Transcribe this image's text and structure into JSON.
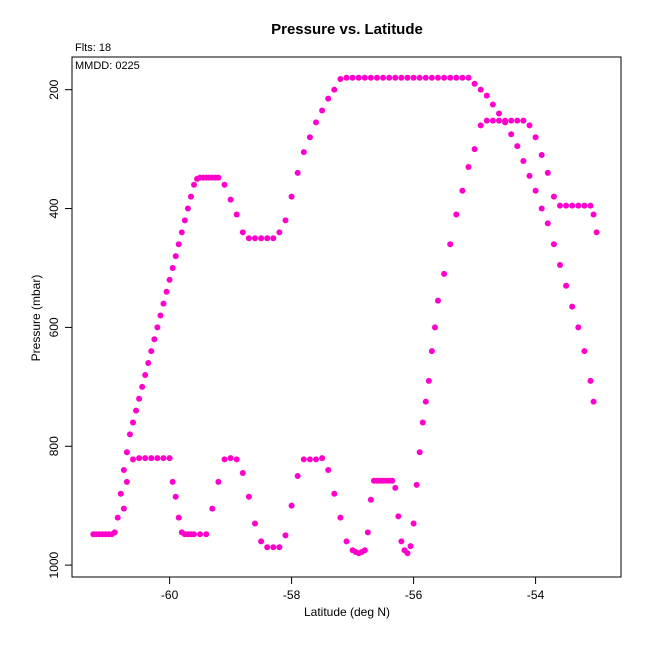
{
  "chart_data": {
    "type": "scatter",
    "title": "Pressure vs. Latitude",
    "xlabel": "Latitude (deg N)",
    "ylabel": "Pressure (mbar)",
    "annotations": [
      "Flts: 18",
      "MMDD: 0225"
    ],
    "xlim": [
      -61.6,
      -52.6
    ],
    "ylim": [
      1020,
      145
    ],
    "y_reversed": true,
    "x_ticks": [
      -60,
      -58,
      -56,
      -54
    ],
    "y_ticks": [
      200,
      400,
      600,
      800,
      1000
    ],
    "grid": false,
    "point_color": "#ff00cc",
    "series": [
      {
        "x": [
          -61.25,
          -61.2,
          -61.15,
          -61.1,
          -61.05,
          -61.0,
          -60.95,
          -60.9,
          -60.85,
          -60.8,
          -60.75,
          -60.7,
          -60.65,
          -60.6,
          -60.55,
          -60.5,
          -60.45,
          -60.4,
          -60.35,
          -60.3,
          -60.25,
          -60.2,
          -60.15,
          -60.1,
          -60.05,
          -60.0,
          -59.95,
          -59.9,
          -59.85,
          -59.8,
          -59.75,
          -59.7,
          -59.65,
          -59.6,
          -59.55,
          -59.5,
          -59.45,
          -59.4,
          -59.35,
          -59.3,
          -59.25,
          -59.2,
          -59.1,
          -59.0,
          -58.9,
          -58.8,
          -58.7,
          -58.6,
          -58.5,
          -58.4,
          -58.3,
          -58.2,
          -58.1,
          -58.0,
          -57.9,
          -57.8,
          -57.7,
          -57.6,
          -57.5,
          -57.4,
          -57.3,
          -57.2,
          -57.1,
          -57.0,
          -56.9,
          -56.8,
          -56.7,
          -56.6,
          -56.5,
          -56.4,
          -56.3,
          -56.2,
          -56.1,
          -56.0,
          -55.9,
          -55.8,
          -55.7,
          -55.6,
          -55.5,
          -55.4,
          -55.3,
          -55.2,
          -55.1,
          -55.0,
          -54.9,
          -54.8,
          -54.7,
          -54.6,
          -54.5,
          -54.4,
          -54.3,
          -54.2,
          -54.1,
          -54.0,
          -53.9,
          -53.8,
          -53.7,
          -53.6,
          -53.5,
          -53.4,
          -53.3,
          -53.2,
          -53.1,
          -53.05
        ],
        "y": [
          948,
          948,
          948,
          948,
          948,
          948,
          948,
          945,
          920,
          880,
          840,
          810,
          780,
          760,
          740,
          720,
          700,
          680,
          660,
          640,
          620,
          600,
          580,
          560,
          540,
          520,
          500,
          480,
          460,
          440,
          420,
          400,
          380,
          360,
          350,
          348,
          348,
          348,
          348,
          348,
          348,
          348,
          360,
          385,
          410,
          440,
          450,
          450,
          450,
          450,
          450,
          440,
          420,
          380,
          340,
          305,
          280,
          255,
          235,
          215,
          200,
          182,
          180,
          180,
          180,
          180,
          180,
          180,
          180,
          180,
          180,
          180,
          180,
          180,
          180,
          180,
          180,
          180,
          180,
          180,
          180,
          180,
          180,
          190,
          200,
          210,
          225,
          240,
          255,
          275,
          295,
          320,
          345,
          370,
          400,
          425,
          460,
          495,
          530,
          565,
          600,
          640,
          690,
          725
        ]
      },
      {
        "x": [
          -60.75,
          -60.7,
          -60.6,
          -60.5,
          -60.4,
          -60.3,
          -60.2,
          -60.1,
          -60.0,
          -59.95,
          -59.9,
          -59.85,
          -59.8,
          -59.75,
          -59.7,
          -59.65,
          -59.6,
          -59.5,
          -59.4,
          -59.3,
          -59.2,
          -59.1,
          -59.0,
          -58.9,
          -58.8,
          -58.7,
          -58.6,
          -58.5,
          -58.4,
          -58.3,
          -58.2,
          -58.1,
          -58.0,
          -57.9,
          -57.8,
          -57.7,
          -57.6,
          -57.5,
          -57.4,
          -57.3,
          -57.2,
          -57.1,
          -57.0,
          -56.95,
          -56.9,
          -56.85,
          -56.8,
          -56.75,
          -56.7,
          -56.65,
          -56.6,
          -56.55,
          -56.5,
          -56.45,
          -56.4,
          -56.35,
          -56.3,
          -56.25,
          -56.2,
          -56.15,
          -56.1,
          -56.05,
          -56.0,
          -55.95,
          -55.9,
          -55.85,
          -55.8,
          -55.75,
          -55.7,
          -55.65,
          -55.6,
          -55.5,
          -55.4,
          -55.3,
          -55.2,
          -55.1,
          -55.0,
          -54.9,
          -54.8,
          -54.7,
          -54.6,
          -54.5,
          -54.4,
          -54.3,
          -54.2,
          -54.1,
          -54.0,
          -53.9,
          -53.8,
          -53.7,
          -53.6,
          -53.5,
          -53.4,
          -53.3,
          -53.2,
          -53.1,
          -53.05,
          -53.0
        ],
        "y": [
          905,
          860,
          822,
          820,
          820,
          820,
          820,
          820,
          820,
          860,
          885,
          920,
          945,
          948,
          948,
          948,
          948,
          948,
          948,
          905,
          860,
          822,
          820,
          822,
          845,
          885,
          930,
          960,
          970,
          970,
          970,
          950,
          900,
          850,
          822,
          822,
          822,
          820,
          840,
          880,
          920,
          960,
          975,
          978,
          980,
          978,
          975,
          945,
          890,
          858,
          858,
          858,
          858,
          858,
          858,
          858,
          870,
          918,
          960,
          975,
          980,
          968,
          930,
          865,
          810,
          760,
          725,
          690,
          640,
          600,
          555,
          510,
          460,
          410,
          370,
          330,
          300,
          260,
          252,
          252,
          252,
          252,
          252,
          252,
          252,
          260,
          280,
          310,
          340,
          380,
          395,
          395,
          395,
          395,
          395,
          395,
          410,
          440
        ]
      }
    ]
  }
}
